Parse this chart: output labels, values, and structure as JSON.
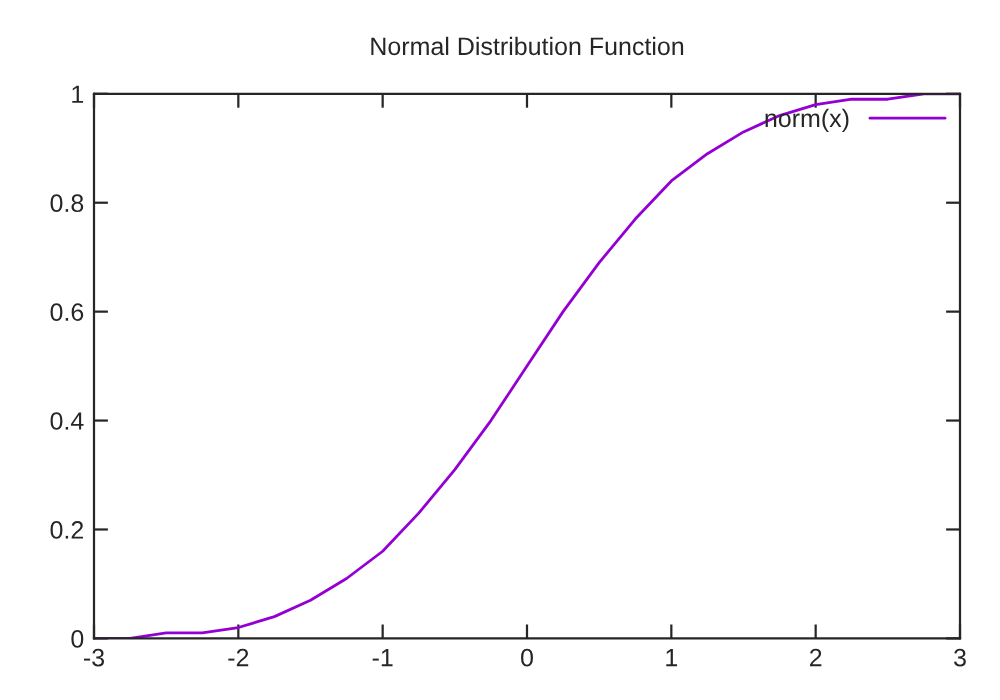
{
  "chart_data": {
    "type": "line",
    "title": "Normal Distribution Function",
    "x": [
      -3,
      -2.75,
      -2.5,
      -2.25,
      -2,
      -1.75,
      -1.5,
      -1.25,
      -1,
      -0.75,
      -0.5,
      -0.25,
      0,
      0.25,
      0.5,
      0.75,
      1,
      1.25,
      1.5,
      1.75,
      2,
      2.25,
      2.5,
      2.75,
      3
    ],
    "series": [
      {
        "name": "norm(x)",
        "color": "#9400d3",
        "values": [
          0.0,
          0.0,
          0.01,
          0.01,
          0.02,
          0.04,
          0.07,
          0.11,
          0.16,
          0.23,
          0.31,
          0.4,
          0.5,
          0.6,
          0.69,
          0.77,
          0.84,
          0.89,
          0.93,
          0.96,
          0.98,
          0.99,
          0.99,
          1.0,
          1.0
        ]
      }
    ],
    "xlim": [
      -3,
      3
    ],
    "xticks": [
      -3,
      -2,
      -1,
      0,
      1,
      2,
      3
    ],
    "ylim": [
      0,
      1
    ],
    "yticks": [
      0,
      0.2,
      0.4,
      0.6,
      0.8,
      1
    ],
    "grid": false,
    "legend": "top right",
    "marker": "none",
    "line_style": "solid"
  }
}
